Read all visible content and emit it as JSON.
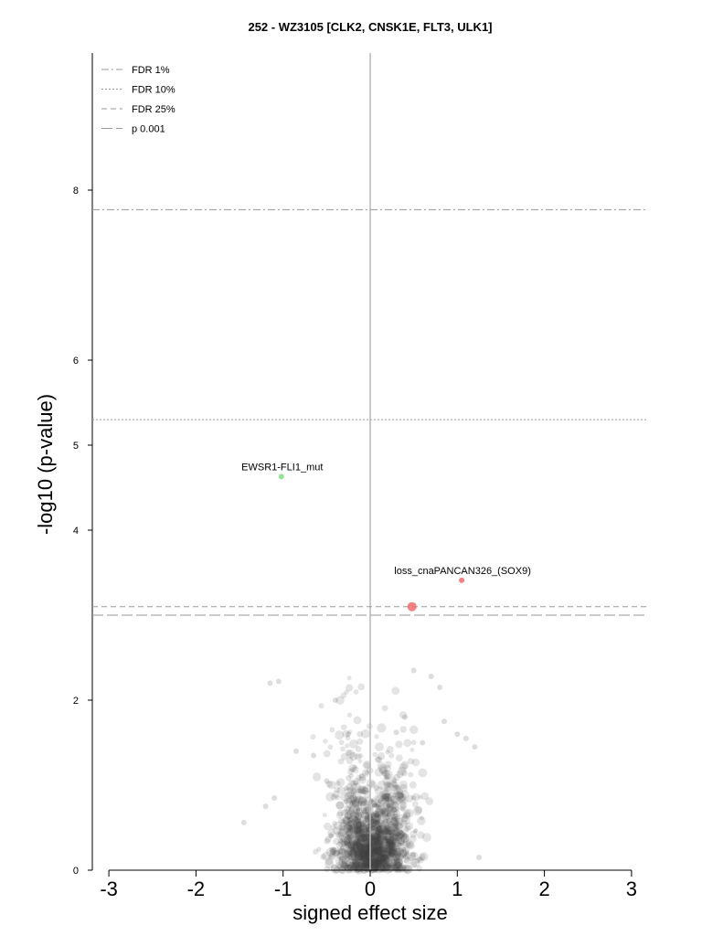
{
  "chart_data": {
    "type": "scatter",
    "title": "252 - WZ3105 [CLK2, CNSK1E, FLT3, ULK1]",
    "xlabel": "signed effect size",
    "ylabel": "-log10 (p-value)",
    "xlim": [
      -3.15,
      3.2
    ],
    "ylim": [
      0,
      9.6
    ],
    "xticks": [
      -3,
      -2,
      -1,
      0,
      1,
      2,
      3
    ],
    "yticks": [
      0,
      2,
      4,
      5,
      6,
      8
    ],
    "grid": false,
    "legend_position": "top-left",
    "thresholds": [
      {
        "name": "FDR 1%",
        "y": 7.77,
        "dash": "dashdot"
      },
      {
        "name": "FDR 10%",
        "y": 5.3,
        "dash": "dotted"
      },
      {
        "name": "FDR 25%",
        "y": 3.1,
        "dash": "dashed"
      },
      {
        "name": "p 0.001",
        "y": 3.0,
        "dash": "longdash"
      }
    ],
    "highlighted": [
      {
        "label": "EWSR1-FLI1_mut",
        "x": -1.02,
        "y": 4.63,
        "color": "#7ee07e",
        "size": 3
      },
      {
        "label": "loss_cnaPANCAN326_(SOX9)",
        "x": 1.05,
        "y": 3.41,
        "color": "#f06a6a",
        "size": 3
      },
      {
        "label": "",
        "x": 0.48,
        "y": 3.1,
        "color": "#f06a6a",
        "size": 5
      }
    ],
    "background_points_note_free": true,
    "point_color": "#404040"
  }
}
